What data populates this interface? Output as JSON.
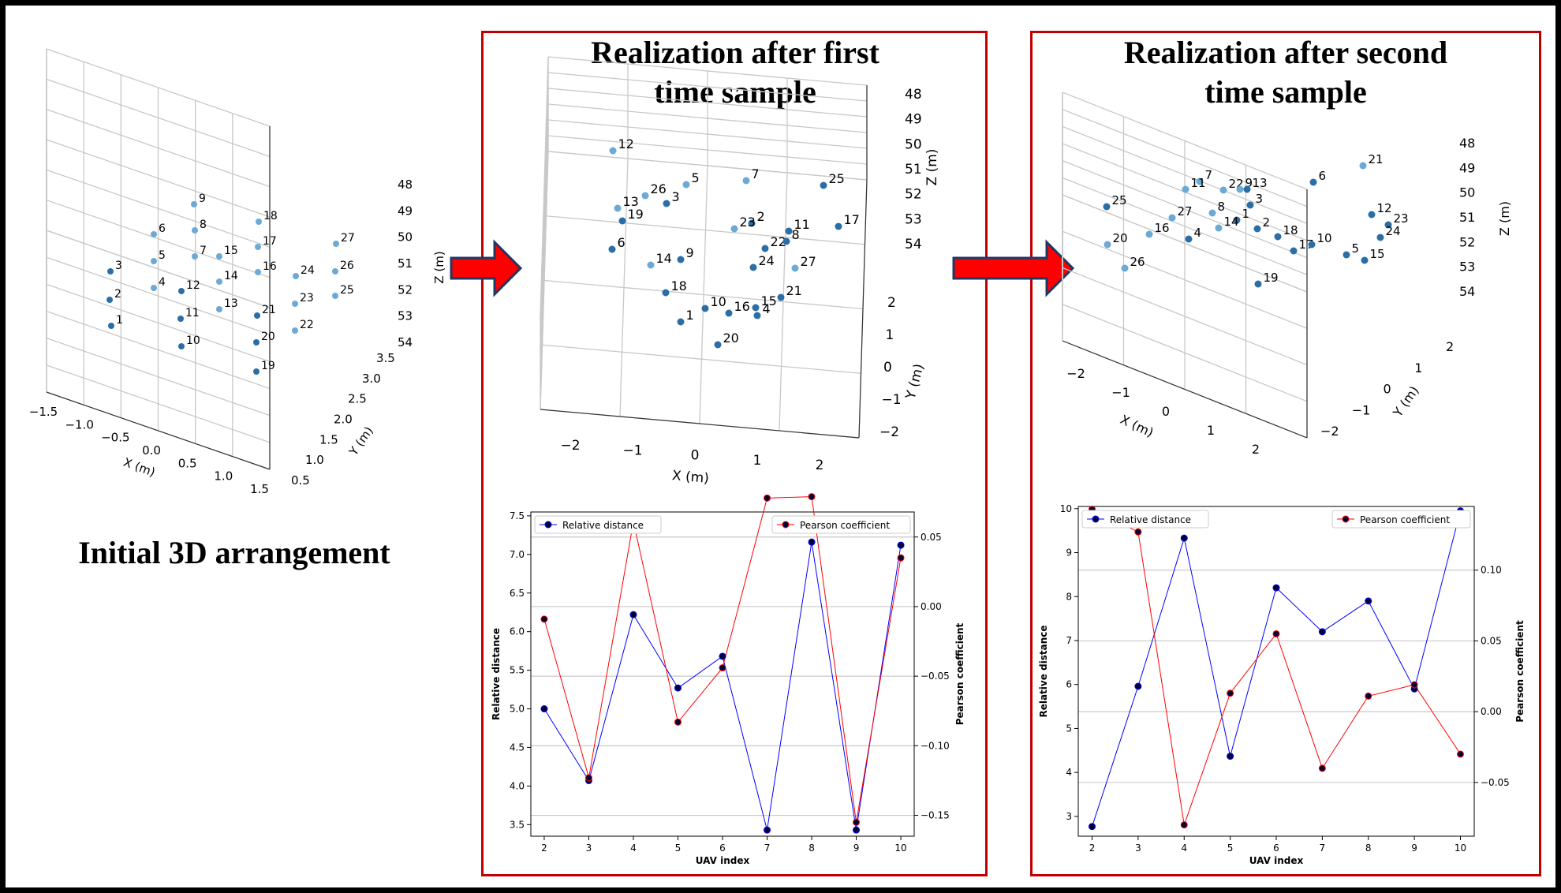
{
  "panels": {
    "initial": {
      "title": "Initial 3D arrangement"
    },
    "first": {
      "title_line1": "Realization after first",
      "title_line2": "time sample"
    },
    "second": {
      "title_line1": "Realization after second",
      "title_line2": "time sample"
    }
  },
  "colors": {
    "frame": "#c00000",
    "arrow": "#ff0000",
    "arrow_outline": "#1f3864",
    "point": "#1f77b4",
    "relative_line": "#0000ff",
    "pearson_line": "#ff0000",
    "marker_fill": "#000033"
  },
  "chart_data": [
    {
      "type": "scatter3d",
      "id": "initial",
      "xlabel": "X (m)",
      "ylabel": "Y (m)",
      "zlabel": "Z (m)",
      "x_ticks": [
        "−1.5",
        "−1.0",
        "−0.5",
        "0.0",
        "0.5",
        "1.0",
        "1.5"
      ],
      "y_ticks": [
        "0.5",
        "1.0",
        "1.5",
        "2.0",
        "2.5",
        "3.0",
        "3.5"
      ],
      "z_ticks": [
        "48",
        "49",
        "50",
        "51",
        "52",
        "53",
        "54"
      ],
      "point_labels": [
        "1",
        "2",
        "3",
        "4",
        "5",
        "6",
        "7",
        "8",
        "9",
        "10",
        "11",
        "12",
        "13",
        "14",
        "15",
        "16",
        "17",
        "18",
        "19",
        "20",
        "21",
        "22",
        "23",
        "24",
        "25",
        "26",
        "27"
      ]
    },
    {
      "type": "scatter3d",
      "id": "first",
      "xlabel": "X (m)",
      "ylabel": "Y (m)",
      "zlabel": "Z (m)",
      "x_ticks": [
        "−2",
        "−1",
        "0",
        "1",
        "2"
      ],
      "y_ticks": [
        "−2",
        "−1",
        "0",
        "1",
        "2"
      ],
      "z_ticks": [
        "48",
        "49",
        "50",
        "51",
        "52",
        "53",
        "54"
      ],
      "point_labels": [
        "12",
        "5",
        "7",
        "25",
        "26",
        "3",
        "13",
        "19",
        "2",
        "23",
        "11",
        "17",
        "22",
        "8",
        "6",
        "14",
        "9",
        "24",
        "27",
        "18",
        "21",
        "10",
        "16",
        "15",
        "4",
        "1",
        "20"
      ]
    },
    {
      "type": "scatter3d",
      "id": "second",
      "xlabel": "X (m)",
      "ylabel": "Y (m)",
      "zlabel": "Z (m)",
      "x_ticks": [
        "−2",
        "−1",
        "0",
        "1",
        "2"
      ],
      "y_ticks": [
        "−2",
        "−1",
        "0",
        "1",
        "2"
      ],
      "z_ticks": [
        "48",
        "49",
        "50",
        "51",
        "52",
        "53",
        "54"
      ],
      "point_labels": [
        "21",
        "6",
        "7",
        "11",
        "22",
        "9",
        "13",
        "3",
        "25",
        "27",
        "8",
        "1",
        "14",
        "2",
        "12",
        "23",
        "16",
        "4",
        "18",
        "24",
        "20",
        "17",
        "10",
        "5",
        "15",
        "26",
        "19"
      ]
    },
    {
      "type": "line",
      "id": "first-line",
      "xlabel": "UAV index",
      "ylabel": "Relative distance",
      "y2label": "Pearson coefficient",
      "x": [
        2,
        3,
        4,
        5,
        6,
        7,
        8,
        9,
        10
      ],
      "ylim": [
        3.35,
        7.55
      ],
      "y_ticks": [
        "3.5",
        "4.0",
        "4.5",
        "5.0",
        "5.5",
        "6.0",
        "6.5",
        "7.0",
        "7.5"
      ],
      "y2lim": [
        -0.165,
        0.068
      ],
      "y2_ticks": [
        "−0.15",
        "−0.10",
        "−0.05",
        "0.00",
        "0.05"
      ],
      "series": [
        {
          "name": "Relative distance",
          "axis": "left",
          "values": [
            5.0,
            4.07,
            6.22,
            5.27,
            5.68,
            3.43,
            7.16,
            3.43,
            7.12
          ]
        },
        {
          "name": "Pearson coefficient",
          "axis": "right",
          "values": [
            -0.009,
            -0.123,
            0.061,
            -0.083,
            -0.044,
            0.078,
            0.079,
            -0.155,
            0.035
          ]
        }
      ]
    },
    {
      "type": "line",
      "id": "second-line",
      "xlabel": "UAV index",
      "ylabel": "Relative distance",
      "y2label": "Pearson coefficient",
      "x": [
        2,
        3,
        4,
        5,
        6,
        7,
        8,
        9,
        10
      ],
      "ylim": [
        2.55,
        10.05
      ],
      "y_ticks": [
        "3",
        "4",
        "5",
        "6",
        "7",
        "8",
        "9",
        "10"
      ],
      "y2lim": [
        -0.088,
        0.145
      ],
      "y2_ticks": [
        "−0.05",
        "0.00",
        "0.05",
        "0.10"
      ],
      "series": [
        {
          "name": "Relative distance",
          "axis": "left",
          "values": [
            2.77,
            5.96,
            9.33,
            4.37,
            8.2,
            7.2,
            7.9,
            5.9,
            9.95
          ]
        },
        {
          "name": "Pearson coefficient",
          "axis": "right",
          "values": [
            0.143,
            0.127,
            -0.08,
            0.013,
            0.055,
            -0.04,
            0.011,
            0.019,
            -0.03
          ]
        }
      ]
    }
  ]
}
